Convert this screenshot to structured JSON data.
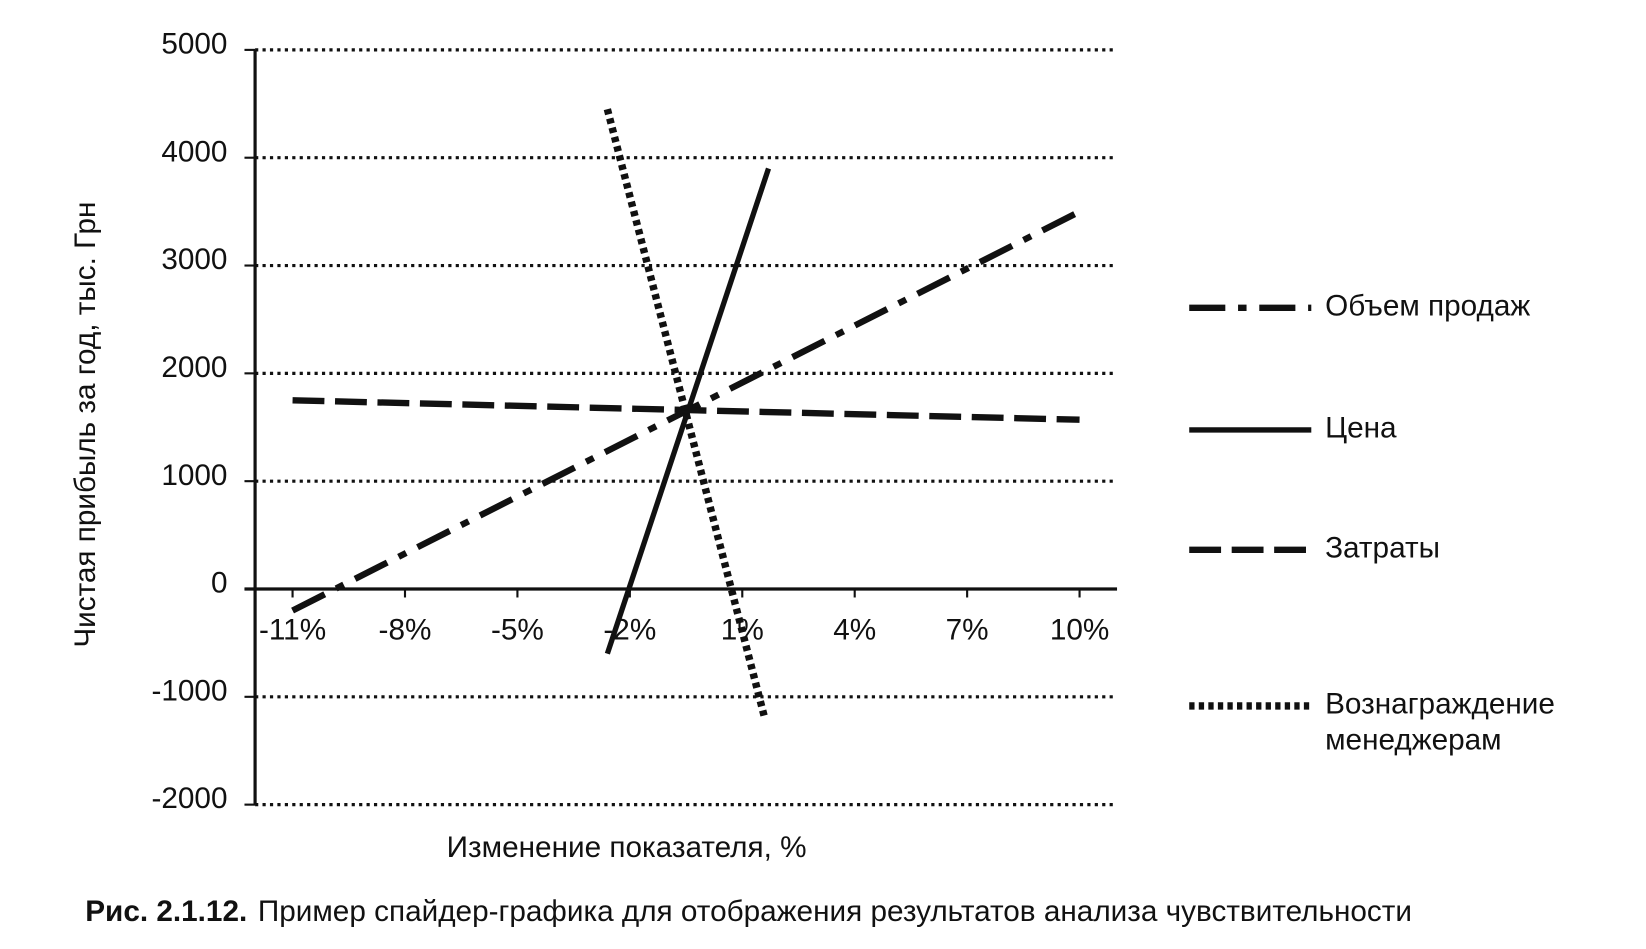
{
  "chart_data": {
    "type": "line",
    "y_label": "Чистая прибыль за год, тыс. Грн",
    "x_label": "Изменение показателя, %",
    "figure_label": "Рис. 2.1.12.",
    "caption": "Пример спайдер-графика для отображения результатов анализа чувствительности",
    "xlim": [
      -12,
      11
    ],
    "xticks": [
      {
        "value": -11,
        "label": "-11%"
      },
      {
        "value": -8,
        "label": "-8%"
      },
      {
        "value": -5,
        "label": "-5%"
      },
      {
        "value": -2,
        "label": "-2%"
      },
      {
        "value": 1,
        "label": "1%"
      },
      {
        "value": 4,
        "label": "4%"
      },
      {
        "value": 7,
        "label": "7%"
      },
      {
        "value": 10,
        "label": "10%"
      }
    ],
    "ylim": [
      -2000,
      5000
    ],
    "yticks": [
      5000,
      4000,
      3000,
      2000,
      1000,
      0,
      -1000,
      -2000
    ],
    "grid": true,
    "legend": "right",
    "series": [
      {
        "name": "Объем продаж",
        "color": "#111111",
        "style": "dashdot",
        "x": [
          -11,
          10
        ],
        "values": [
          -200,
          3500
        ]
      },
      {
        "name": "Цена",
        "color": "#111111",
        "style": "solid",
        "x": [
          -2.6,
          1.7
        ],
        "values": [
          -600,
          3900
        ]
      },
      {
        "name": "Затраты",
        "color": "#111111",
        "style": "dashed",
        "x": [
          -11,
          10
        ],
        "values": [
          1750,
          1570
        ]
      },
      {
        "name": "Вознаграждение менеджерам",
        "color": "#111111",
        "style": "dotted",
        "x": [
          -2.6,
          1.6
        ],
        "values": [
          4450,
          -1200
        ]
      }
    ]
  }
}
